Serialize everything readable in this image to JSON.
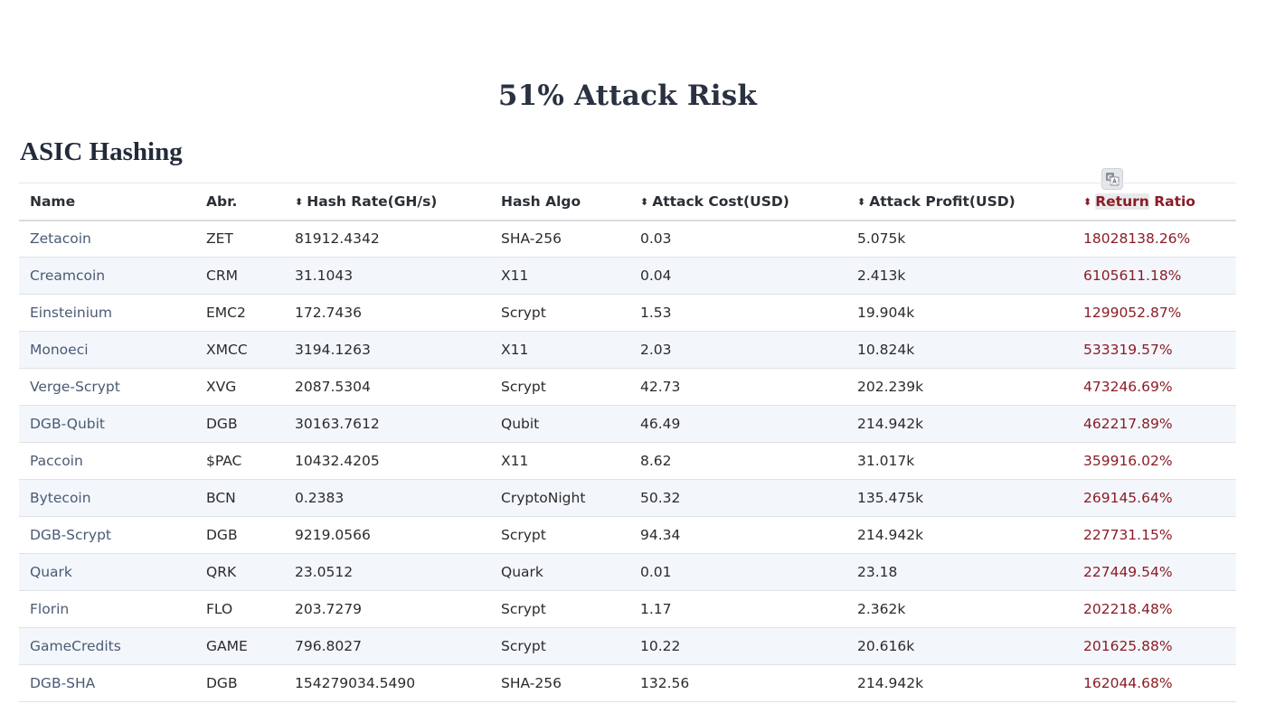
{
  "page": {
    "title": "51% Attack Risk",
    "section_title": "ASIC Hashing"
  },
  "icons": {
    "translate": "translate-icon",
    "sort": "sort-arrows-icon"
  },
  "colors": {
    "heading": "#2a3142",
    "link": "#4a5a74",
    "accent": "#8b1c26",
    "stripe": "#f3f7fb"
  },
  "table": {
    "columns": [
      {
        "label": "Name",
        "sortable": false
      },
      {
        "label": "Abr.",
        "sortable": false
      },
      {
        "label": "Hash Rate(GH/s)",
        "sortable": true
      },
      {
        "label": "Hash Algo",
        "sortable": false
      },
      {
        "label": "Attack Cost(USD)",
        "sortable": true
      },
      {
        "label": "Attack Profit(USD)",
        "sortable": true
      },
      {
        "label": "Return Ratio",
        "sortable": true,
        "active": true
      }
    ],
    "rows": [
      [
        "Zetacoin",
        "ZET",
        "81912.4342",
        "SHA-256",
        "0.03",
        "5.075k",
        "18028138.26%"
      ],
      [
        "Creamcoin",
        "CRM",
        "31.1043",
        "X11",
        "0.04",
        "2.413k",
        "6105611.18%"
      ],
      [
        "Einsteinium",
        "EMC2",
        "172.7436",
        "Scrypt",
        "1.53",
        "19.904k",
        "1299052.87%"
      ],
      [
        "Monoeci",
        "XMCC",
        "3194.1263",
        "X11",
        "2.03",
        "10.824k",
        "533319.57%"
      ],
      [
        "Verge-Scrypt",
        "XVG",
        "2087.5304",
        "Scrypt",
        "42.73",
        "202.239k",
        "473246.69%"
      ],
      [
        "DGB-Qubit",
        "DGB",
        "30163.7612",
        "Qubit",
        "46.49",
        "214.942k",
        "462217.89%"
      ],
      [
        "Paccoin",
        "$PAC",
        "10432.4205",
        "X11",
        "8.62",
        "31.017k",
        "359916.02%"
      ],
      [
        "Bytecoin",
        "BCN",
        "0.2383",
        "CryptoNight",
        "50.32",
        "135.475k",
        "269145.64%"
      ],
      [
        "DGB-Scrypt",
        "DGB",
        "9219.0566",
        "Scrypt",
        "94.34",
        "214.942k",
        "227731.15%"
      ],
      [
        "Quark",
        "QRK",
        "23.0512",
        "Quark",
        "0.01",
        "23.18",
        "227449.54%"
      ],
      [
        "Florin",
        "FLO",
        "203.7279",
        "Scrypt",
        "1.17",
        "2.362k",
        "202218.48%"
      ],
      [
        "GameCredits",
        "GAME",
        "796.8027",
        "Scrypt",
        "10.22",
        "20.616k",
        "201625.88%"
      ],
      [
        "DGB-SHA",
        "DGB",
        "154279034.5490",
        "SHA-256",
        "132.56",
        "214.942k",
        "162044.68%"
      ]
    ]
  }
}
